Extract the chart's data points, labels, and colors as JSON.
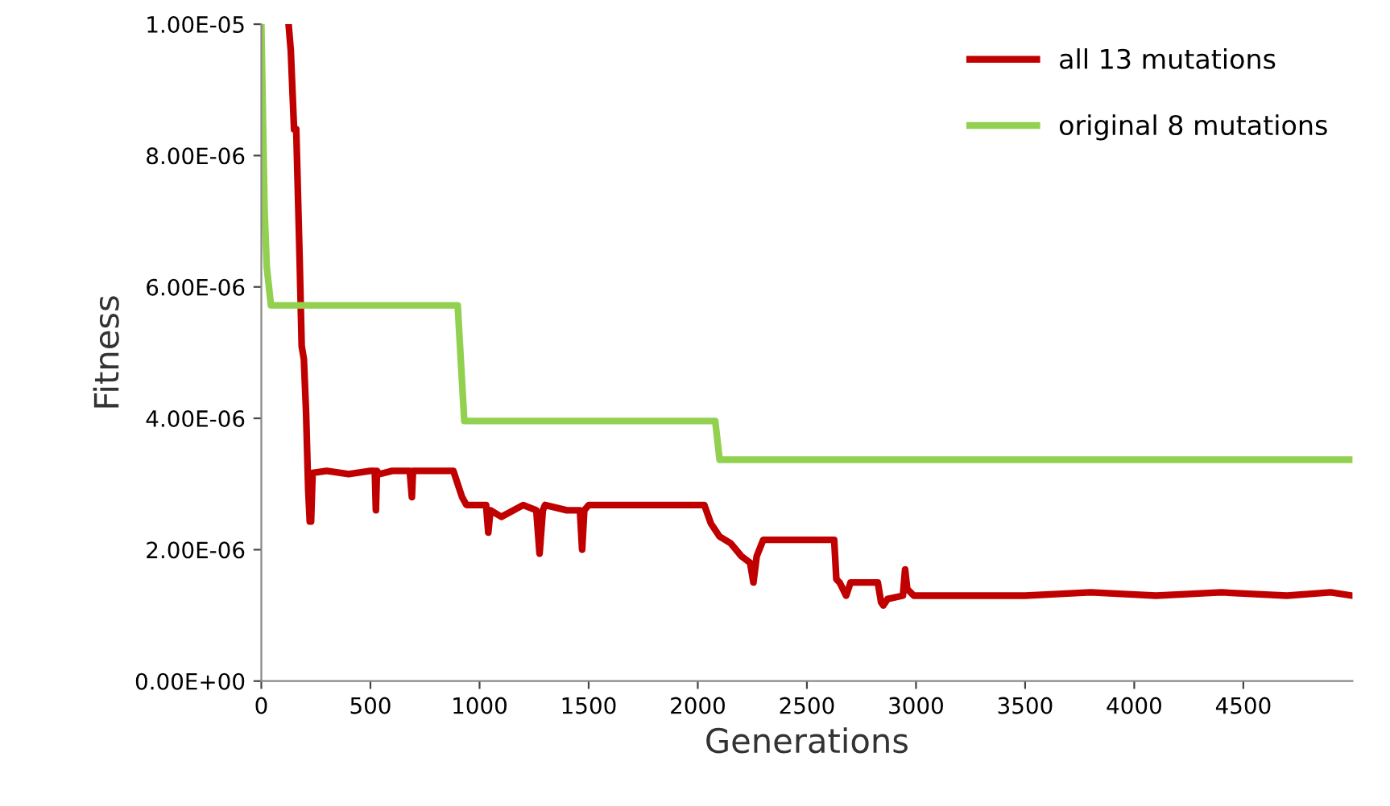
{
  "chart_data": {
    "type": "line",
    "xlabel": "Generations",
    "ylabel": "Fitness",
    "xlim": [
      0,
      5000
    ],
    "xticks": [
      0,
      500,
      1000,
      1500,
      2000,
      2500,
      3000,
      3500,
      4000,
      4500
    ],
    "ylim": [
      0,
      1e-05
    ],
    "yticks": [
      {
        "value": 0,
        "label": "0.00E+00"
      },
      {
        "value": 2e-06,
        "label": "2.00E-06"
      },
      {
        "value": 4e-06,
        "label": "4.00E-06"
      },
      {
        "value": 6e-06,
        "label": "6.00E-06"
      },
      {
        "value": 8e-06,
        "label": "8.00E-06"
      },
      {
        "value": 1e-05,
        "label": "1.00E-05"
      }
    ],
    "grid": false,
    "legend": "top right",
    "marker": "none",
    "line_style": "solid",
    "series": [
      {
        "name": "all 13 mutations",
        "color": "#c00000",
        "x": [
          125,
          135,
          150,
          160,
          175,
          185,
          195,
          205,
          215,
          222,
          228,
          235,
          300,
          400,
          500,
          520,
          525,
          530,
          540,
          600,
          680,
          690,
          695,
          700,
          800,
          880,
          900,
          920,
          940,
          1000,
          1030,
          1040,
          1050,
          1100,
          1200,
          1260,
          1275,
          1290,
          1300,
          1400,
          1460,
          1470,
          1480,
          1500,
          1700,
          1900,
          2030,
          2060,
          2100,
          2150,
          2200,
          2240,
          2255,
          2270,
          2300,
          2400,
          2500,
          2600,
          2625,
          2635,
          2650,
          2680,
          2700,
          2750,
          2800,
          2825,
          2840,
          2850,
          2870,
          2940,
          2950,
          2960,
          2990,
          3200,
          3500,
          3800,
          4100,
          4400,
          4700,
          4900,
          5000
        ],
        "values": [
          1e-05,
          9.6e-06,
          8.4e-06,
          8.4e-06,
          6.5e-06,
          5.1e-06,
          4.9e-06,
          4.1e-06,
          2.9e-06,
          2.43e-06,
          2.43e-06,
          3.17e-06,
          3.2e-06,
          3.15e-06,
          3.2e-06,
          3.2e-06,
          2.6e-06,
          3.2e-06,
          3.15e-06,
          3.2e-06,
          3.2e-06,
          2.8e-06,
          3.2e-06,
          3.2e-06,
          3.2e-06,
          3.2e-06,
          3e-06,
          2.8e-06,
          2.68e-06,
          2.68e-06,
          2.68e-06,
          2.26e-06,
          2.6e-06,
          2.5e-06,
          2.68e-06,
          2.6e-06,
          1.94e-06,
          2.6e-06,
          2.68e-06,
          2.6e-06,
          2.6e-06,
          2e-06,
          2.6e-06,
          2.68e-06,
          2.68e-06,
          2.68e-06,
          2.68e-06,
          2.4e-06,
          2.2e-06,
          2.1e-06,
          1.9e-06,
          1.8e-06,
          1.5e-06,
          1.9e-06,
          2.15e-06,
          2.15e-06,
          2.15e-06,
          2.15e-06,
          2.15e-06,
          1.55e-06,
          1.5e-06,
          1.3e-06,
          1.5e-06,
          1.5e-06,
          1.5e-06,
          1.5e-06,
          1.2e-06,
          1.15e-06,
          1.25e-06,
          1.3e-06,
          1.7e-06,
          1.4e-06,
          1.3e-06,
          1.3e-06,
          1.3e-06,
          1.35e-06,
          1.3e-06,
          1.35e-06,
          1.3e-06,
          1.35e-06,
          1.3e-06
        ]
      },
      {
        "name": "original 8 mutations",
        "color": "#92d050",
        "x": [
          0,
          15,
          25,
          35,
          44,
          200,
          400,
          800,
          900,
          907,
          930,
          1000,
          1500,
          1700,
          2000,
          2080,
          2100,
          2500,
          3000,
          3500,
          4000,
          4500,
          5000
        ],
        "values": [
          1e-05,
          7.15e-06,
          6.3e-06,
          6e-06,
          5.72e-06,
          5.72e-06,
          5.72e-06,
          5.72e-06,
          5.72e-06,
          5.3e-06,
          3.96e-06,
          3.96e-06,
          3.96e-06,
          3.96e-06,
          3.96e-06,
          3.96e-06,
          3.37e-06,
          3.37e-06,
          3.37e-06,
          3.37e-06,
          3.37e-06,
          3.37e-06,
          3.37e-06
        ]
      }
    ]
  }
}
